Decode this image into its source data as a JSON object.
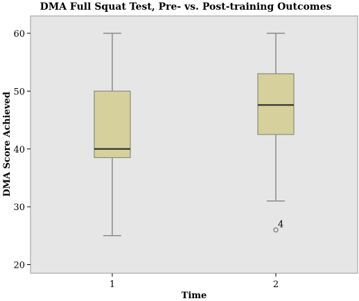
{
  "chart_data": {
    "type": "boxplot",
    "title": "DMA Full Squat Test, Pre- vs. Post-training Outcomes",
    "xlabel": "Time",
    "ylabel": "DMA Score Achieved",
    "categories": [
      "1",
      "2"
    ],
    "ylim": [
      18.5,
      63
    ],
    "yticks": [
      20,
      30,
      40,
      50,
      60
    ],
    "grid": false,
    "colors": {
      "plot_background": "#e6e6e6",
      "box_fill": "#d6d09c",
      "box_stroke": "#8a8a78",
      "whisker": "#8a8a8a",
      "median": "#333333"
    },
    "boxes": [
      {
        "category": "1",
        "min": 25,
        "q1": 38.5,
        "median": 40,
        "q3": 50,
        "max": 60,
        "outliers": []
      },
      {
        "category": "2",
        "min": 31,
        "q1": 42.5,
        "median": 47.6,
        "q3": 53,
        "max": 60,
        "outliers": [
          {
            "value": 26,
            "label": "4"
          }
        ]
      }
    ]
  }
}
